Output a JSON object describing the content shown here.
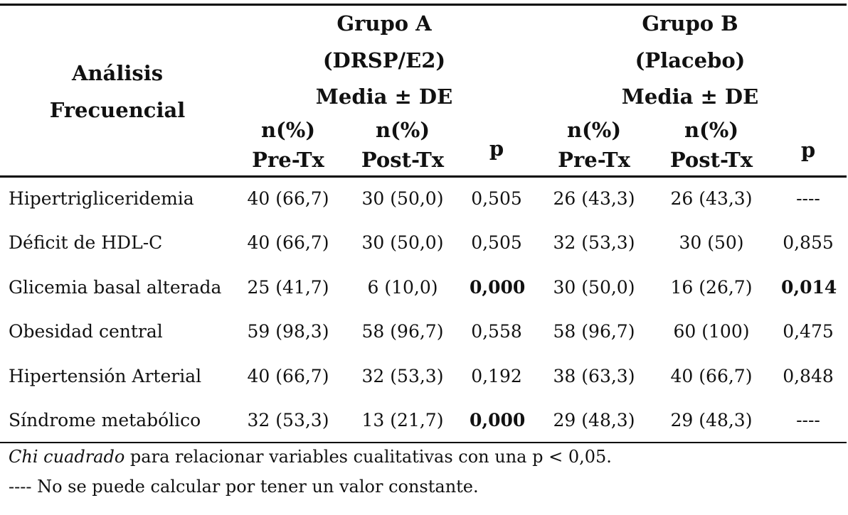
{
  "header": {
    "row_label": [
      "Análisis",
      "Frecuencial"
    ],
    "group_a": [
      "Grupo A",
      "(DRSP/E2)",
      "Media ± DE"
    ],
    "group_b": [
      "Grupo B",
      "(Placebo)",
      "Media ± DE"
    ],
    "col_pre": [
      "n(%)",
      "Pre-Tx"
    ],
    "col_post": [
      "n(%)",
      "Post-Tx"
    ],
    "col_p": "p"
  },
  "rows": [
    {
      "label": "Hipertrigliceridemia",
      "a_pre": "40 (66,7)",
      "a_post": "30 (50,0)",
      "a_p": "0,505",
      "a_p_bold": false,
      "b_pre": "26 (43,3)",
      "b_post": "26 (43,3)",
      "b_p": "----",
      "b_p_bold": false
    },
    {
      "label": "Déficit de HDL-C",
      "a_pre": "40 (66,7)",
      "a_post": "30 (50,0)",
      "a_p": "0,505",
      "a_p_bold": false,
      "b_pre": "32 (53,3)",
      "b_post": "30 (50)",
      "b_p": "0,855",
      "b_p_bold": false
    },
    {
      "label": "Glicemia basal alterada",
      "a_pre": "25 (41,7)",
      "a_post": "6 (10,0)",
      "a_p": "0,000",
      "a_p_bold": true,
      "b_pre": "30 (50,0)",
      "b_post": "16 (26,7)",
      "b_p": "0,014",
      "b_p_bold": true
    },
    {
      "label": "Obesidad central",
      "a_pre": "59 (98,3)",
      "a_post": "58 (96,7)",
      "a_p": "0,558",
      "a_p_bold": false,
      "b_pre": "58 (96,7)",
      "b_post": "60 (100)",
      "b_p": "0,475",
      "b_p_bold": false
    },
    {
      "label": "Hipertensión Arterial",
      "a_pre": "40 (66,7)",
      "a_post": "32 (53,3)",
      "a_p": "0,192",
      "a_p_bold": false,
      "b_pre": "38 (63,3)",
      "b_post": "40 (66,7)",
      "b_p": "0,848",
      "b_p_bold": false
    },
    {
      "label": "Síndrome metabólico",
      "a_pre": "32 (53,3)",
      "a_post": "13 (21,7)",
      "a_p": "0,000",
      "a_p_bold": true,
      "b_pre": "29 (48,3)",
      "b_post": "29 (48,3)",
      "b_p": "----",
      "b_p_bold": false
    }
  ],
  "footnotes": {
    "line1_italic": "Chi cuadrado",
    "line1_rest": " para relacionar variables cualitativas con una p < 0,05.",
    "line2": "---- No se puede calcular por tener un valor constante."
  }
}
